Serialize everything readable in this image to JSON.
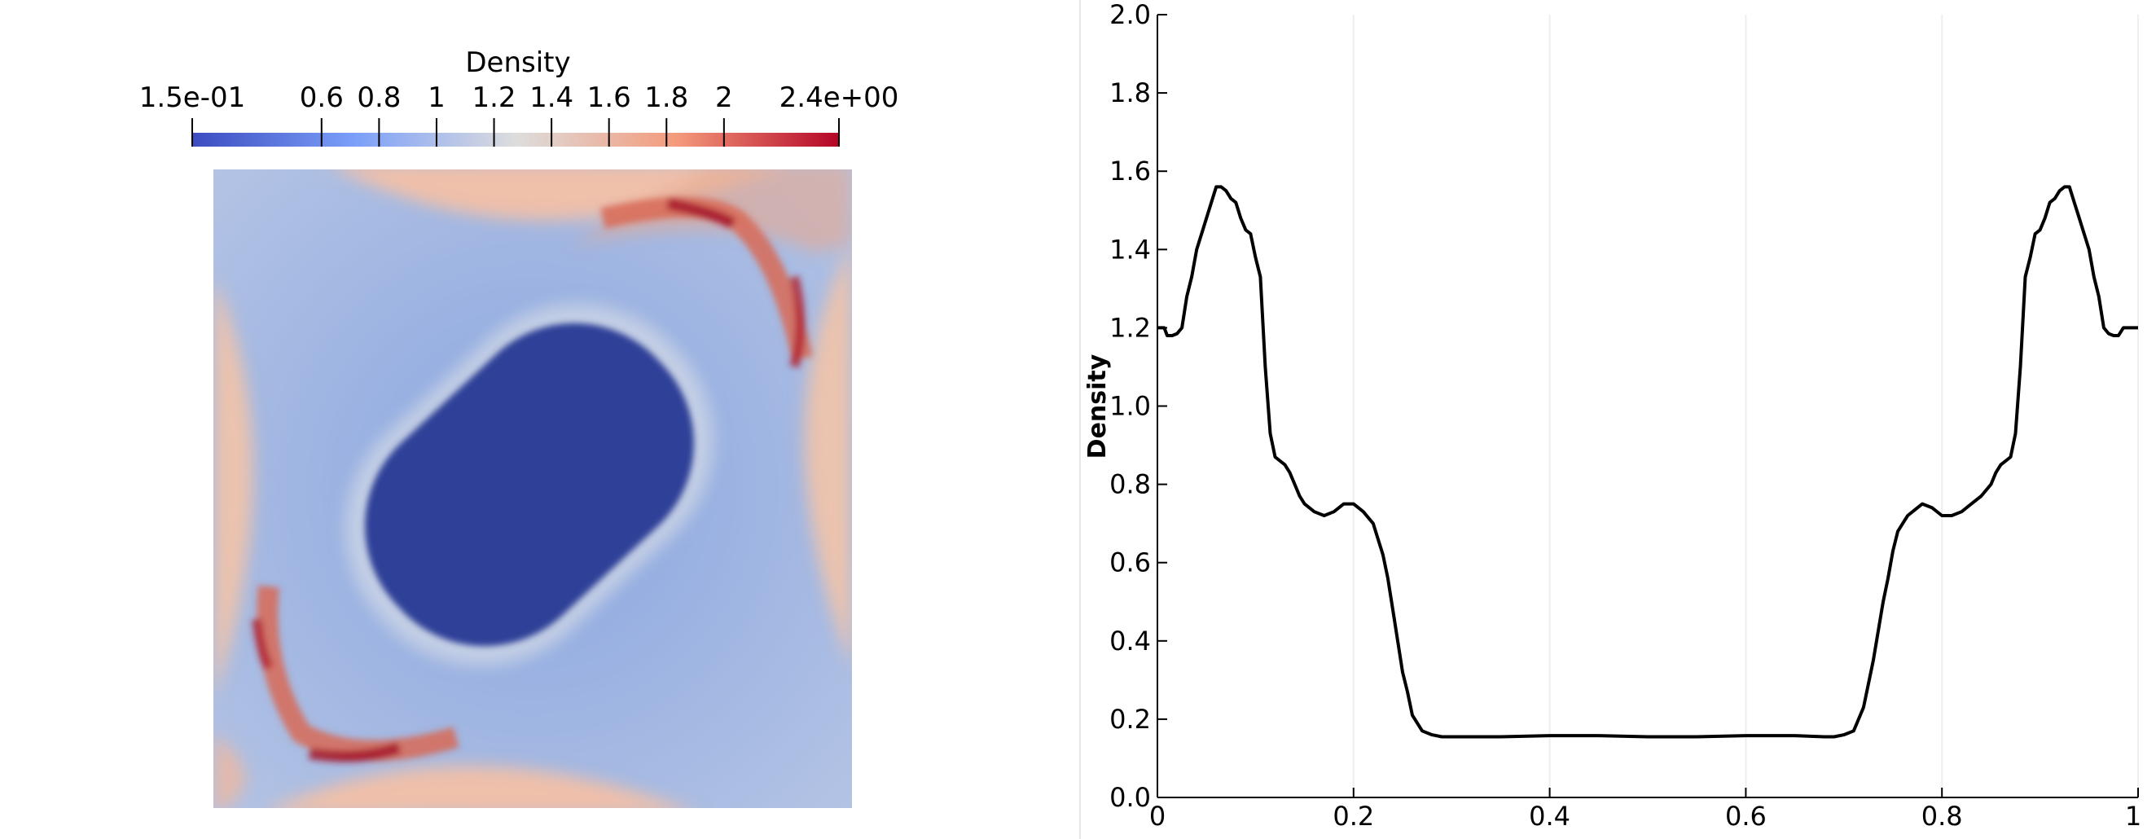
{
  "colorbar": {
    "title": "Density",
    "range": [
      0.15,
      2.4
    ],
    "ticks": [
      {
        "value": 0.15,
        "label": "1.5e-01"
      },
      {
        "value": 0.6,
        "label": "0.6"
      },
      {
        "value": 0.8,
        "label": "0.8"
      },
      {
        "value": 1.0,
        "label": "1"
      },
      {
        "value": 1.2,
        "label": "1.2"
      },
      {
        "value": 1.4,
        "label": "1.4"
      },
      {
        "value": 1.6,
        "label": "1.6"
      },
      {
        "value": 1.8,
        "label": "1.8"
      },
      {
        "value": 2.0,
        "label": "2"
      },
      {
        "value": 2.4,
        "label": "2.4e+00"
      }
    ],
    "colormap": "cool-to-warm",
    "colors": {
      "low": "#3b4cc0",
      "mid": "#dddddd",
      "high": "#b40426"
    }
  },
  "field_view": {
    "field": "Density",
    "background_color": "#a3b9e3",
    "core_color": "#2f4197"
  },
  "chart_data": {
    "type": "line",
    "title": "",
    "xlabel": "",
    "ylabel": "Density",
    "xlim": [
      0,
      1
    ],
    "ylim": [
      0.0,
      2.0
    ],
    "xticks": [
      "0",
      "0.2",
      "0.4",
      "0.6",
      "0.8",
      "1"
    ],
    "yticks": [
      "0.0",
      "0.2",
      "0.4",
      "0.6",
      "0.8",
      "1.0",
      "1.2",
      "1.4",
      "1.6",
      "1.8",
      "2.0"
    ],
    "grid": "vertical",
    "line_color": "#000000",
    "x": [
      0.0,
      0.007,
      0.01,
      0.015,
      0.02,
      0.025,
      0.03,
      0.035,
      0.04,
      0.045,
      0.05,
      0.055,
      0.06,
      0.065,
      0.07,
      0.075,
      0.08,
      0.085,
      0.09,
      0.095,
      0.1,
      0.105,
      0.11,
      0.115,
      0.12,
      0.125,
      0.13,
      0.135,
      0.14,
      0.145,
      0.15,
      0.16,
      0.17,
      0.18,
      0.19,
      0.2,
      0.21,
      0.22,
      0.23,
      0.235,
      0.24,
      0.245,
      0.25,
      0.255,
      0.26,
      0.27,
      0.28,
      0.29,
      0.3,
      0.31,
      0.32,
      0.35,
      0.4,
      0.45,
      0.5,
      0.55,
      0.6,
      0.65,
      0.68,
      0.69,
      0.7,
      0.71,
      0.72,
      0.73,
      0.74,
      0.745,
      0.75,
      0.755,
      0.76,
      0.765,
      0.77,
      0.78,
      0.79,
      0.8,
      0.81,
      0.82,
      0.83,
      0.84,
      0.85,
      0.855,
      0.86,
      0.865,
      0.87,
      0.875,
      0.88,
      0.885,
      0.89,
      0.895,
      0.9,
      0.905,
      0.91,
      0.915,
      0.92,
      0.925,
      0.93,
      0.935,
      0.94,
      0.945,
      0.95,
      0.955,
      0.96,
      0.965,
      0.97,
      0.975,
      0.98,
      0.985,
      0.99,
      1.0
    ],
    "y": [
      1.2,
      1.2,
      1.18,
      1.18,
      1.185,
      1.2,
      1.28,
      1.33,
      1.4,
      1.44,
      1.48,
      1.52,
      1.56,
      1.56,
      1.55,
      1.53,
      1.52,
      1.48,
      1.45,
      1.44,
      1.38,
      1.33,
      1.1,
      0.93,
      0.87,
      0.86,
      0.85,
      0.83,
      0.8,
      0.77,
      0.75,
      0.73,
      0.72,
      0.73,
      0.75,
      0.75,
      0.73,
      0.7,
      0.62,
      0.56,
      0.48,
      0.4,
      0.32,
      0.27,
      0.21,
      0.17,
      0.16,
      0.155,
      0.155,
      0.155,
      0.155,
      0.155,
      0.158,
      0.158,
      0.155,
      0.155,
      0.158,
      0.158,
      0.155,
      0.155,
      0.16,
      0.17,
      0.23,
      0.35,
      0.5,
      0.56,
      0.63,
      0.68,
      0.7,
      0.72,
      0.73,
      0.75,
      0.74,
      0.72,
      0.72,
      0.73,
      0.75,
      0.77,
      0.8,
      0.83,
      0.85,
      0.86,
      0.87,
      0.93,
      1.1,
      1.33,
      1.38,
      1.44,
      1.45,
      1.48,
      1.52,
      1.53,
      1.55,
      1.56,
      1.56,
      1.52,
      1.48,
      1.44,
      1.4,
      1.33,
      1.28,
      1.2,
      1.185,
      1.18,
      1.18,
      1.2,
      1.2,
      1.2
    ]
  }
}
